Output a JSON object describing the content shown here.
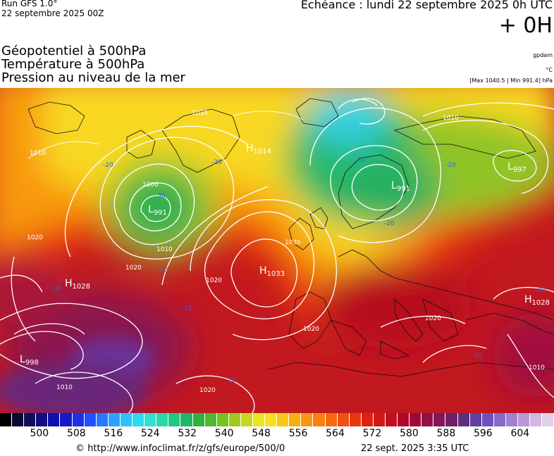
{
  "header": {
    "run_label": "Run GFS 1.0°",
    "run_date": "22 septembre 2025 00Z",
    "echeance": "Echéance : lundi 22 septembre 2025 0h UTC",
    "horizon": "+ 0H",
    "title_lines": [
      "Géopotentiel à 500hPa",
      "Température à 500hPa",
      "Pression au niveau de la mer"
    ],
    "unit_geopotential": "gpdam",
    "unit_temperature": "°C",
    "pressure_range": "[Max 1040.5 | Min 991.4] hPa"
  },
  "centers": [
    {
      "type": "H",
      "value": "1028"
    },
    {
      "type": "H",
      "value": "1033"
    },
    {
      "type": "H",
      "value": "1028"
    },
    {
      "type": "H",
      "value": "1014"
    },
    {
      "type": "L",
      "value": "991"
    },
    {
      "type": "L",
      "value": "991"
    },
    {
      "type": "L",
      "value": "997"
    },
    {
      "type": "L",
      "value": "998"
    }
  ],
  "isobar_labels": [
    "1010",
    "1010",
    "1020",
    "1000",
    "1010",
    "1030",
    "1020",
    "1020",
    "1020",
    "1020",
    "1010",
    "1020",
    "1010",
    "1010"
  ],
  "temperature_labels": [
    "-20",
    "-20",
    "-20",
    "-10",
    "-10",
    "-10",
    "-10",
    "-10",
    "-20",
    "-20",
    "-30",
    "-30"
  ],
  "colorbar": {
    "colors": [
      "#000000",
      "#0a0a30",
      "#10105a",
      "#101080",
      "#1010a8",
      "#1818c8",
      "#2030e8",
      "#2050ff",
      "#2a78ff",
      "#30a0ff",
      "#30c0ff",
      "#30d8f0",
      "#30e0d0",
      "#28d8a8",
      "#20c888",
      "#20b868",
      "#30b040",
      "#50b830",
      "#78c020",
      "#a0c820",
      "#c8d820",
      "#e8e820",
      "#f8e020",
      "#f8c818",
      "#f8b010",
      "#f89810",
      "#f88010",
      "#f86810",
      "#f05010",
      "#e83810",
      "#e02010",
      "#d01818",
      "#c01020",
      "#b00828",
      "#a00838",
      "#901048",
      "#801858",
      "#702068",
      "#603080",
      "#6040a0",
      "#7050b8",
      "#8868c8",
      "#a080d0",
      "#b898d8",
      "#d0b8e0",
      "#e0d0e8"
    ],
    "ticks": [
      "500",
      "508",
      "516",
      "524",
      "532",
      "540",
      "548",
      "556",
      "564",
      "572",
      "580",
      "588",
      "596",
      "604"
    ]
  },
  "footer": {
    "source": "© http://www.infoclimat.fr/z/gfs/europe/500/0",
    "generated": "22 sept. 2025  3:35 UTC"
  }
}
